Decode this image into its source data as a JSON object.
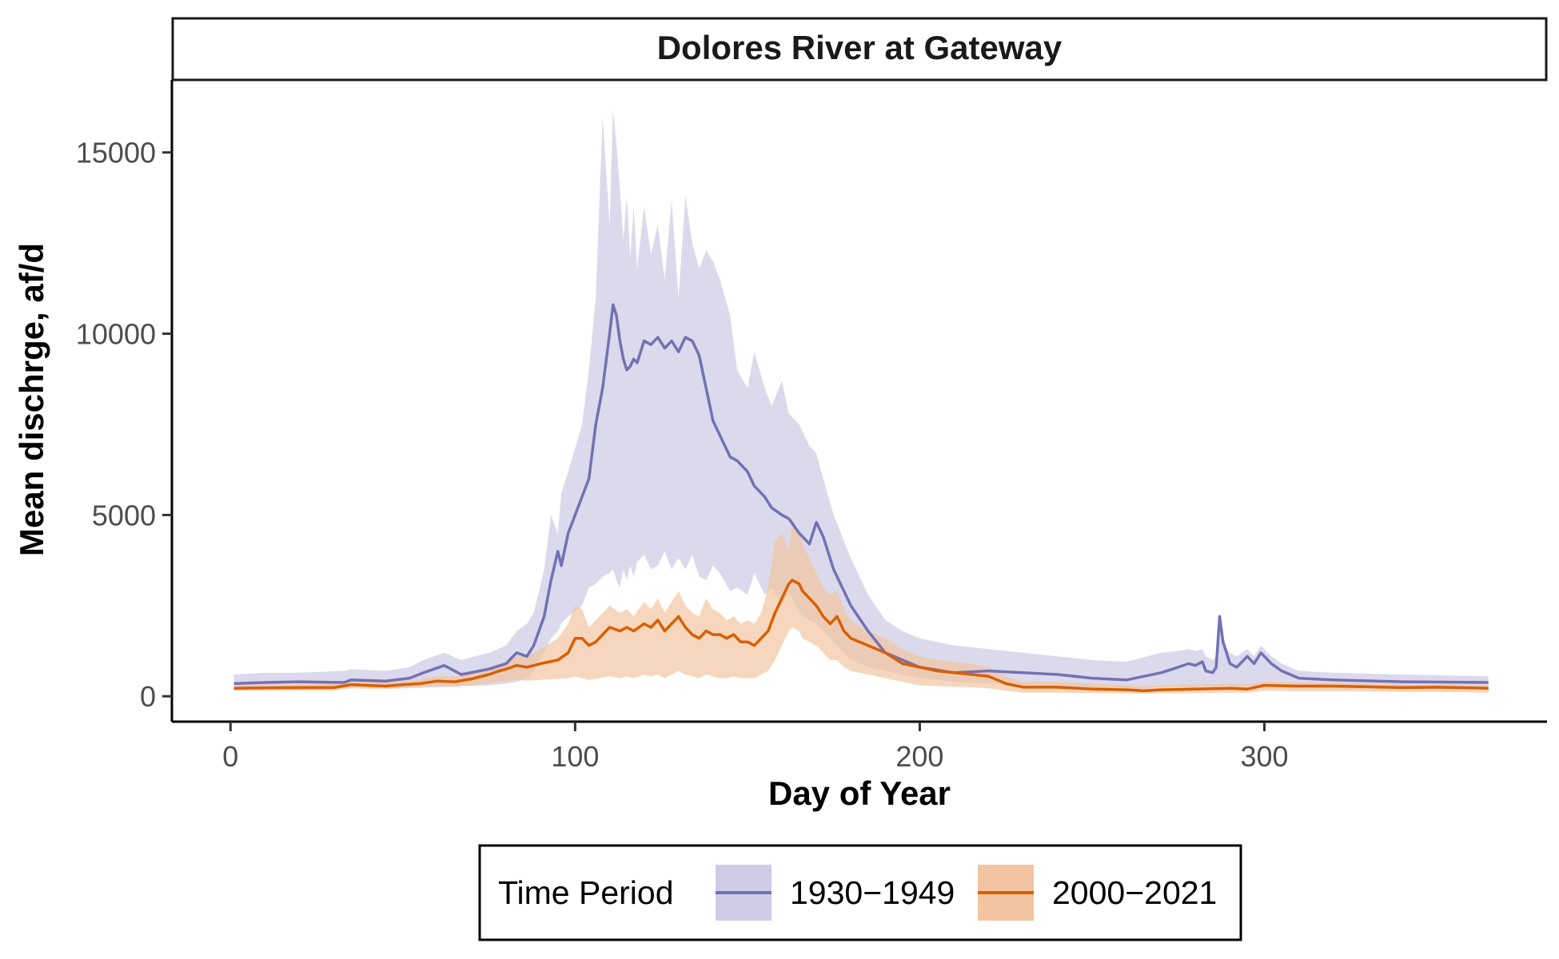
{
  "chart_data": {
    "type": "line",
    "title": "Dolores River at Gateway",
    "xlabel": "Day of Year",
    "ylabel": "Mean dischrge, af/d",
    "xlim": [
      -17,
      382
    ],
    "ylim": [
      -700,
      17000
    ],
    "x_ticks": [
      0,
      100,
      200,
      300
    ],
    "y_ticks": [
      0,
      5000,
      10000,
      15000
    ],
    "grid": false,
    "legend": {
      "title": "Time Period",
      "position": "bottom",
      "entries": [
        "1930−1949",
        "2000−2021"
      ]
    },
    "series": [
      {
        "name": "1930−1949",
        "color": "#7570b3",
        "band_color": "#cfcde6",
        "x": [
          1,
          10,
          20,
          33,
          35,
          45,
          52,
          56,
          62,
          67,
          75,
          80,
          83,
          86,
          88,
          91,
          93,
          95,
          96,
          98,
          102,
          104,
          106,
          108,
          110,
          111,
          112,
          113,
          114,
          115,
          116,
          117,
          118,
          120,
          122,
          124,
          126,
          128,
          130,
          132,
          134,
          136,
          138,
          140,
          142,
          145,
          147,
          150,
          152,
          155,
          157,
          160,
          162,
          165,
          168,
          170,
          172,
          175,
          180,
          185,
          190,
          195,
          200,
          210,
          220,
          230,
          240,
          250,
          260,
          270,
          275,
          278,
          280,
          282,
          283,
          285,
          286,
          287,
          288,
          290,
          292,
          295,
          297,
          299,
          302,
          305,
          310,
          320,
          340,
          365
        ],
        "values": [
          350,
          380,
          400,
          380,
          450,
          420,
          500,
          650,
          850,
          600,
          750,
          900,
          1200,
          1100,
          1400,
          2200,
          3200,
          4000,
          3600,
          4500,
          5500,
          6000,
          7500,
          8500,
          10000,
          10800,
          10500,
          9800,
          9300,
          9000,
          9100,
          9300,
          9200,
          9800,
          9700,
          9900,
          9600,
          9800,
          9500,
          9900,
          9800,
          9400,
          8500,
          7600,
          7200,
          6600,
          6500,
          6200,
          5800,
          5500,
          5200,
          5000,
          4900,
          4500,
          4200,
          4800,
          4400,
          3500,
          2500,
          1800,
          1200,
          1000,
          800,
          650,
          700,
          650,
          600,
          500,
          450,
          650,
          800,
          900,
          850,
          950,
          700,
          650,
          800,
          2200,
          1500,
          900,
          800,
          1100,
          900,
          1200,
          900,
          700,
          500,
          450,
          400,
          380
        ],
        "band_upper": [
          600,
          650,
          650,
          700,
          750,
          700,
          800,
          1000,
          1200,
          1000,
          1200,
          1400,
          1800,
          2000,
          2300,
          3500,
          5000,
          4500,
          5600,
          6200,
          7500,
          9000,
          11000,
          16000,
          13000,
          16200,
          15200,
          14000,
          12600,
          13800,
          12100,
          13500,
          11800,
          13500,
          12200,
          13000,
          11500,
          13700,
          11000,
          13800,
          12500,
          11800,
          12300,
          12000,
          11500,
          10500,
          9000,
          8500,
          9500,
          8500,
          8000,
          8700,
          7800,
          7500,
          6900,
          6700,
          6000,
          5000,
          3800,
          2800,
          2100,
          1800,
          1600,
          1400,
          1300,
          1200,
          1100,
          1000,
          950,
          1200,
          1250,
          1300,
          1250,
          1300,
          1100,
          1000,
          1100,
          2200,
          1500,
          1200,
          1100,
          1300,
          1100,
          1400,
          1100,
          900,
          700,
          650,
          600,
          550
        ],
        "band_lower": [
          200,
          200,
          220,
          230,
          250,
          220,
          230,
          240,
          250,
          280,
          300,
          350,
          400,
          500,
          700,
          1200,
          1600,
          1800,
          2000,
          2200,
          2500,
          3000,
          3100,
          3300,
          3400,
          3500,
          3200,
          3000,
          3500,
          3200,
          3600,
          3300,
          3700,
          3900,
          3500,
          3600,
          4000,
          3500,
          3800,
          3500,
          3900,
          3300,
          3200,
          3600,
          3400,
          2900,
          3000,
          2800,
          3400,
          2800,
          3000,
          2500,
          2900,
          2300,
          2100,
          2000,
          1800,
          1500,
          1000,
          800,
          700,
          600,
          500,
          400,
          350,
          300,
          250,
          220,
          200,
          250,
          260,
          260,
          250,
          280,
          260,
          240,
          250,
          280,
          270,
          260,
          250,
          270,
          260,
          280,
          260,
          240,
          220,
          220,
          200,
          200
        ]
      },
      {
        "name": "2000−2021",
        "color": "#d95f02",
        "band_color": "#f2c4a0",
        "x": [
          1,
          10,
          20,
          30,
          35,
          45,
          50,
          55,
          60,
          65,
          70,
          75,
          78,
          80,
          83,
          86,
          90,
          95,
          98,
          100,
          102,
          104,
          106,
          108,
          110,
          113,
          115,
          117,
          120,
          122,
          124,
          126,
          128,
          130,
          132,
          134,
          136,
          138,
          140,
          142,
          144,
          146,
          148,
          150,
          152,
          154,
          156,
          158,
          160,
          162,
          163,
          165,
          166,
          168,
          170,
          172,
          174,
          176,
          178,
          180,
          185,
          190,
          195,
          200,
          205,
          210,
          215,
          220,
          225,
          230,
          240,
          250,
          260,
          265,
          270,
          280,
          290,
          295,
          300,
          310,
          320,
          330,
          340,
          350,
          360,
          365
        ],
        "values": [
          220,
          230,
          240,
          240,
          320,
          280,
          320,
          350,
          420,
          400,
          480,
          600,
          700,
          750,
          850,
          800,
          900,
          1000,
          1200,
          1600,
          1600,
          1400,
          1500,
          1700,
          1900,
          1800,
          1900,
          1800,
          2000,
          1900,
          2100,
          1800,
          2000,
          2200,
          1900,
          1700,
          1600,
          1800,
          1700,
          1700,
          1600,
          1700,
          1500,
          1500,
          1400,
          1600,
          1800,
          2300,
          2700,
          3100,
          3200,
          3100,
          2900,
          2700,
          2500,
          2200,
          2000,
          2200,
          1800,
          1600,
          1400,
          1200,
          900,
          800,
          700,
          650,
          600,
          550,
          350,
          250,
          250,
          200,
          180,
          150,
          180,
          200,
          220,
          200,
          300,
          280,
          280,
          260,
          240,
          250,
          230,
          220
        ],
        "band_upper": [
          300,
          320,
          330,
          350,
          420,
          380,
          420,
          470,
          550,
          550,
          650,
          800,
          900,
          950,
          1100,
          1100,
          1300,
          1600,
          2000,
          2500,
          2400,
          1900,
          2100,
          2300,
          2500,
          2300,
          2400,
          2200,
          2600,
          2400,
          2700,
          2300,
          2600,
          2900,
          2500,
          2300,
          2200,
          2700,
          2400,
          2300,
          2100,
          2200,
          2000,
          2100,
          2000,
          2300,
          3000,
          4300,
          4500,
          4000,
          4900,
          4500,
          4200,
          3800,
          3400,
          3000,
          2800,
          2900,
          2400,
          2100,
          1800,
          1600,
          1300,
          1100,
          1000,
          950,
          900,
          800,
          550,
          400,
          400,
          350,
          300,
          280,
          300,
          330,
          350,
          330,
          400,
          380,
          380,
          350,
          320,
          330,
          310,
          300
        ],
        "band_lower": [
          150,
          150,
          160,
          160,
          220,
          200,
          220,
          240,
          280,
          260,
          300,
          350,
          400,
          420,
          450,
          430,
          450,
          480,
          500,
          550,
          500,
          450,
          480,
          520,
          550,
          500,
          550,
          500,
          600,
          550,
          600,
          500,
          600,
          700,
          600,
          550,
          500,
          600,
          550,
          500,
          500,
          550,
          500,
          500,
          500,
          600,
          700,
          1000,
          1400,
          1800,
          1900,
          1800,
          1600,
          1500,
          1400,
          1200,
          1000,
          1000,
          800,
          700,
          600,
          500,
          400,
          300,
          280,
          260,
          250,
          220,
          150,
          100,
          100,
          90,
          80,
          70,
          80,
          90,
          100,
          100,
          150,
          140,
          140,
          130,
          120,
          120,
          110,
          100
        ]
      }
    ]
  }
}
